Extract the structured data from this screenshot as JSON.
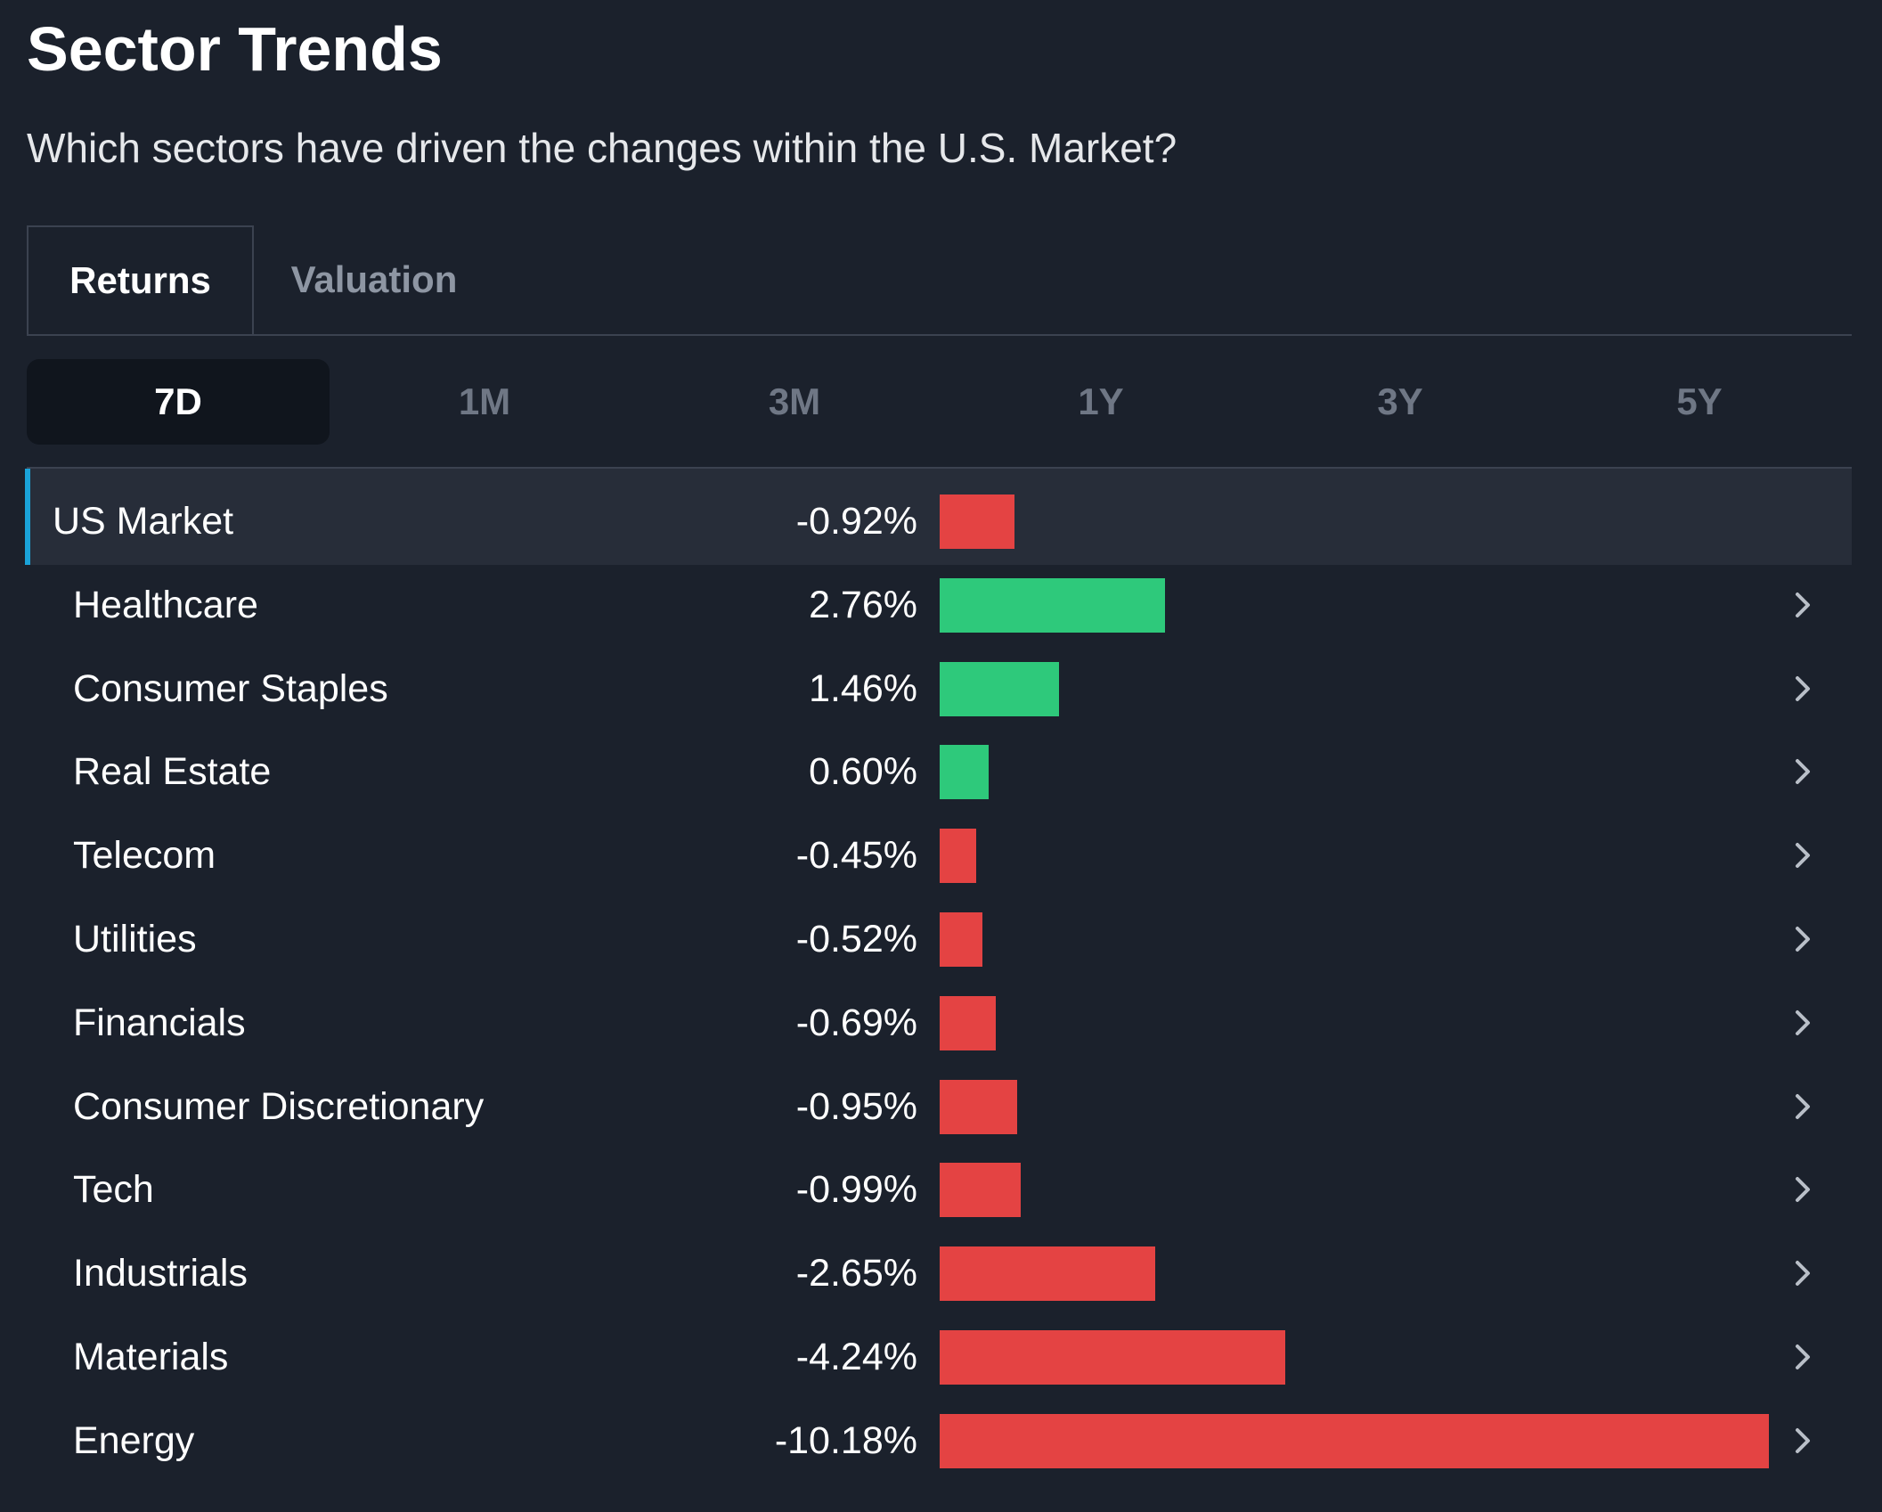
{
  "header": {
    "title": "Sector Trends",
    "subtitle": "Which sectors have driven the changes within the U.S. Market?"
  },
  "tabs": [
    {
      "label": "Returns",
      "active": true
    },
    {
      "label": "Valuation",
      "active": false
    }
  ],
  "periods": [
    {
      "label": "7D",
      "active": true
    },
    {
      "label": "1M",
      "active": false
    },
    {
      "label": "3M",
      "active": false
    },
    {
      "label": "1Y",
      "active": false
    },
    {
      "label": "3Y",
      "active": false
    },
    {
      "label": "5Y",
      "active": false
    }
  ],
  "colors": {
    "positive": "#2ec97b",
    "negative": "#e44343",
    "accent": "#1aa3d9",
    "chevron": "#b9bfc8"
  },
  "icons": {
    "row_chevron": "chevron-right-icon"
  },
  "chart_data": {
    "type": "bar",
    "orientation": "horizontal",
    "unit": "%",
    "categories": [
      "US Market",
      "Healthcare",
      "Consumer Staples",
      "Real Estate",
      "Telecom",
      "Utilities",
      "Financials",
      "Consumer Discretionary",
      "Tech",
      "Industrials",
      "Materials",
      "Energy"
    ],
    "values": [
      -0.92,
      2.76,
      1.46,
      0.6,
      -0.45,
      -0.52,
      -0.69,
      -0.95,
      -0.99,
      -2.65,
      -4.24,
      -10.18
    ],
    "value_labels": [
      "-0.92%",
      "2.76%",
      "1.46%",
      "0.60%",
      "-0.45%",
      "-0.52%",
      "-0.69%",
      "-0.95%",
      "-0.99%",
      "-2.65%",
      "-4.24%",
      "-10.18%"
    ],
    "highlighted_category": "US Market"
  }
}
